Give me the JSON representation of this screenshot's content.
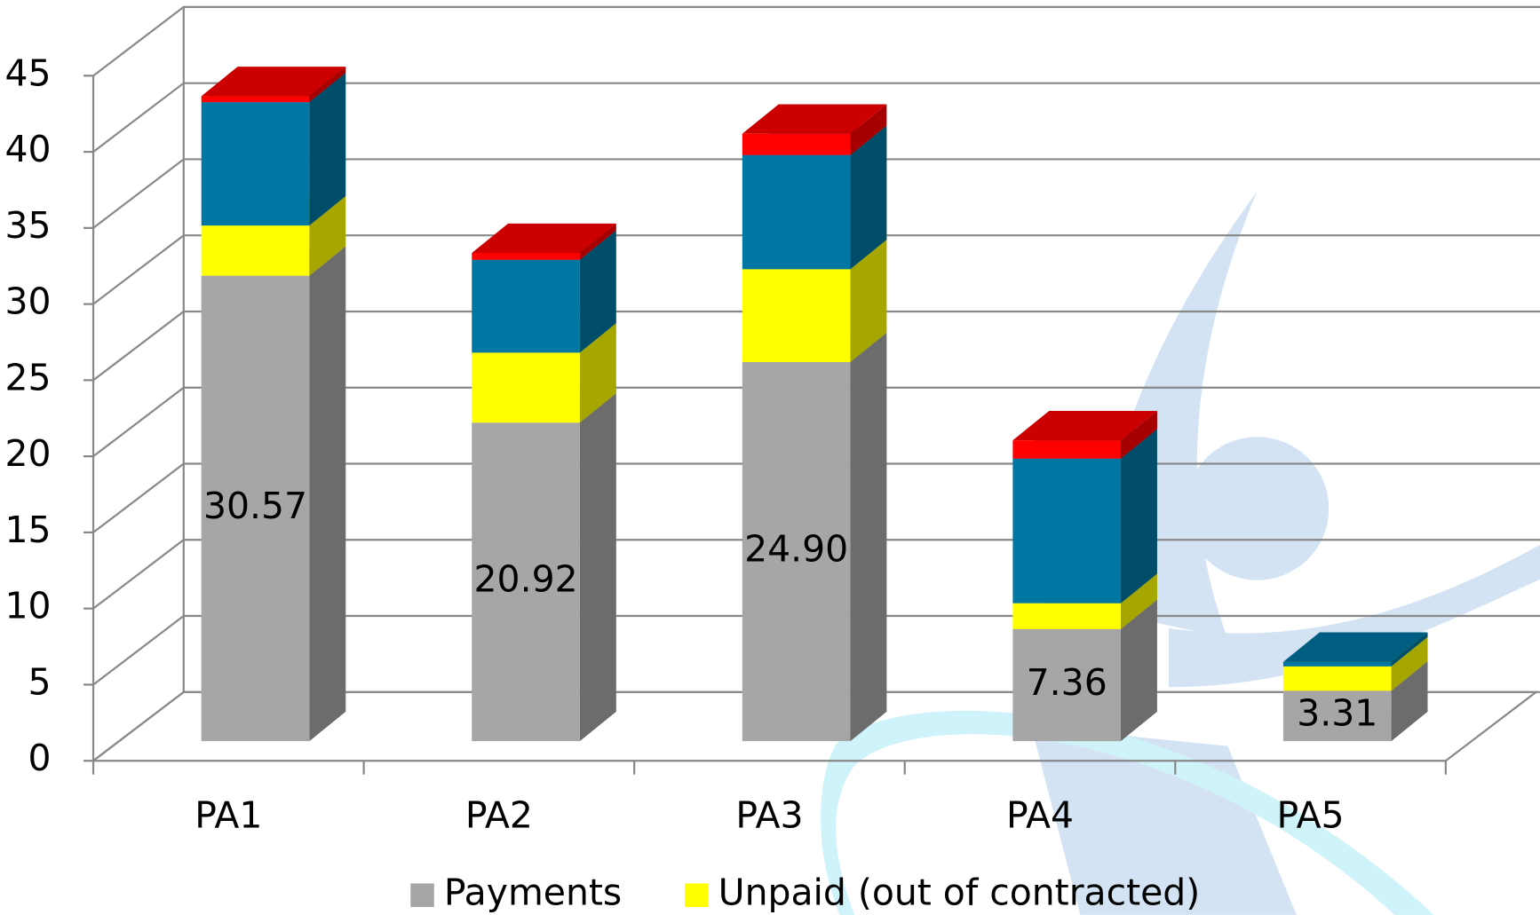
{
  "chart_data": {
    "type": "bar3d_stacked",
    "categories": [
      "PA1",
      "PA2",
      "PA3",
      "PA4",
      "PA5"
    ],
    "series": [
      {
        "name": "Payments",
        "color": "#a6a6a6",
        "values": [
          30.57,
          20.92,
          24.9,
          7.36,
          3.31
        ],
        "value_labels": [
          "30.57",
          "20.92",
          "24.90",
          "7.36",
          "3.31"
        ]
      },
      {
        "name": "Unpaid (out of contracted)",
        "color": "#ffff00",
        "values": [
          3.3,
          4.6,
          6.1,
          1.7,
          1.6
        ]
      },
      {
        "color": "#0076a3",
        "values": [
          8.1,
          6.1,
          7.5,
          9.5,
          0.3
        ]
      },
      {
        "color": "#ff0000",
        "values": [
          0.4,
          0.45,
          1.4,
          1.2,
          0
        ]
      }
    ],
    "ylim": [
      0,
      45
    ],
    "yticks": [
      0,
      5,
      10,
      15,
      20,
      25,
      30,
      35,
      40,
      45
    ],
    "grid": true
  }
}
